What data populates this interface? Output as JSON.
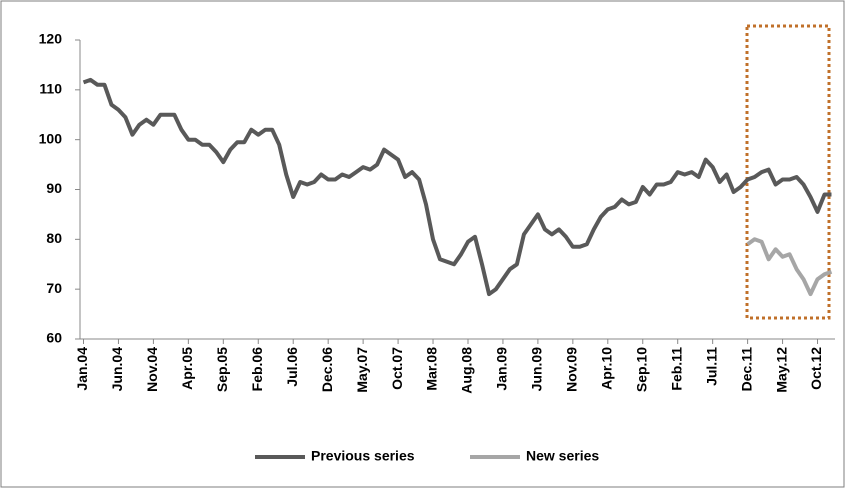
{
  "chart_data": {
    "type": "line",
    "categories": [
      "Jan.04",
      null,
      null,
      null,
      null,
      "Jun.04",
      null,
      null,
      null,
      null,
      "Nov.04",
      null,
      null,
      null,
      null,
      "Apr.05",
      null,
      null,
      null,
      null,
      "Sep.05",
      null,
      null,
      null,
      null,
      "Feb.06",
      null,
      null,
      null,
      null,
      "Jul.06",
      null,
      null,
      null,
      null,
      "Dec.06",
      null,
      null,
      null,
      null,
      "May.07",
      null,
      null,
      null,
      null,
      "Oct.07",
      null,
      null,
      null,
      null,
      "Mar.08",
      null,
      null,
      null,
      null,
      "Aug.08",
      null,
      null,
      null,
      null,
      "Jan.09",
      null,
      null,
      null,
      null,
      "Jun.09",
      null,
      null,
      null,
      null,
      "Nov.09",
      null,
      null,
      null,
      null,
      "Apr.10",
      null,
      null,
      null,
      null,
      "Sep.10",
      null,
      null,
      null,
      null,
      "Feb.11",
      null,
      null,
      null,
      null,
      "Jul.11",
      null,
      null,
      null,
      null,
      "Dec.11",
      null,
      null,
      null,
      null,
      "May.12",
      null,
      null,
      null,
      null,
      "Oct.12",
      null,
      null
    ],
    "series": [
      {
        "name": "Previous series",
        "color": "#595959",
        "values": [
          111.5,
          112,
          111,
          111,
          107,
          106,
          104.5,
          101,
          103,
          104,
          103,
          105,
          105,
          105,
          102,
          100,
          100,
          99,
          99,
          97.5,
          95.5,
          98,
          99.5,
          99.5,
          102,
          101,
          102,
          102,
          99,
          93,
          88.5,
          91.5,
          91,
          91.5,
          93,
          92,
          92,
          93,
          92.5,
          93.5,
          94.5,
          94,
          95,
          98,
          97,
          96,
          92.5,
          93.5,
          92,
          87,
          80,
          76,
          75.5,
          75,
          77,
          79.5,
          80.5,
          75,
          69,
          70,
          72,
          74,
          75,
          81,
          83,
          85,
          82,
          81,
          82,
          80.5,
          78.5,
          78.5,
          79,
          82,
          84.5,
          86,
          86.5,
          88,
          87,
          87.5,
          90.5,
          89,
          91,
          91,
          91.5,
          93.5,
          93,
          93.5,
          92.5,
          96,
          94.5,
          91.5,
          93,
          89.5,
          90.5,
          92,
          92.5,
          93.5,
          94,
          91,
          92,
          92,
          92.5,
          91,
          88.5,
          85.5,
          89,
          89
        ]
      },
      {
        "name": "New series",
        "color": "#a6a6a6",
        "values": [
          null,
          null,
          null,
          null,
          null,
          null,
          null,
          null,
          null,
          null,
          null,
          null,
          null,
          null,
          null,
          null,
          null,
          null,
          null,
          null,
          null,
          null,
          null,
          null,
          null,
          null,
          null,
          null,
          null,
          null,
          null,
          null,
          null,
          null,
          null,
          null,
          null,
          null,
          null,
          null,
          null,
          null,
          null,
          null,
          null,
          null,
          null,
          null,
          null,
          null,
          null,
          null,
          null,
          null,
          null,
          null,
          null,
          null,
          null,
          null,
          null,
          null,
          null,
          null,
          null,
          null,
          null,
          null,
          null,
          null,
          null,
          null,
          null,
          null,
          null,
          null,
          null,
          null,
          null,
          null,
          null,
          null,
          null,
          null,
          null,
          null,
          null,
          null,
          null,
          null,
          null,
          null,
          null,
          null,
          null,
          79,
          80,
          79.5,
          76,
          78,
          76.5,
          77,
          74,
          72,
          69,
          72,
          73,
          73.5
        ]
      }
    ],
    "ylim": [
      60,
      120
    ],
    "yticks": [
      60,
      70,
      80,
      90,
      100,
      110,
      120
    ],
    "legend": "bottom"
  }
}
